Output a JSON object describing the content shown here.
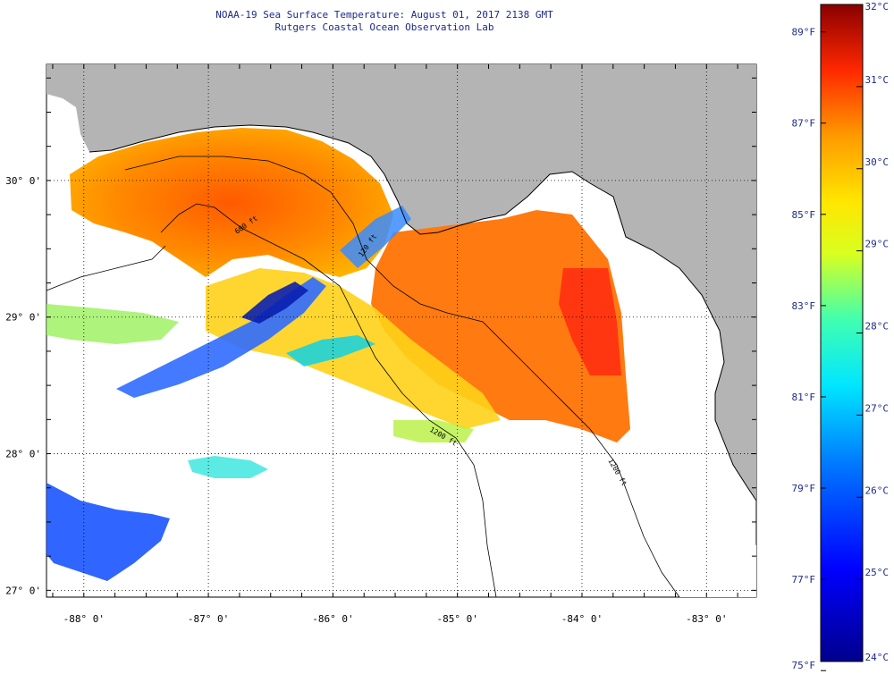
{
  "title_line1": "NOAA-19 Sea Surface Temperature:  August 01, 2017 2138 GMT",
  "title_line2": "Rutgers Coastal Ocean Observation Lab",
  "map": {
    "lat_range": [
      26.95,
      30.85
    ],
    "lon_range": [
      -88.3,
      -82.6
    ],
    "lat_labels": [
      "27° 0'",
      "28° 0'",
      "29° 0'",
      "30° 0'"
    ],
    "lon_labels": [
      "-88° 0'",
      "-87° 0'",
      "-86° 0'",
      "-85° 0'",
      "-84° 0'",
      "-83° 0'"
    ],
    "isobath_labels": [
      "120 ft",
      "600 ft",
      "1200 ft",
      "1200 ft"
    ],
    "land_color": "#b4b4b4",
    "cloud_color": "#ffffff"
  },
  "colorbar": {
    "celsius_min": 24,
    "celsius_max": 32,
    "celsius_labels": [
      "32°C",
      "31°C",
      "30°C",
      "29°C",
      "28°C",
      "27°C",
      "26°C",
      "25°C",
      "24°C"
    ],
    "fahrenheit_labels": [
      "89°F",
      "87°F",
      "85°F",
      "83°F",
      "81°F",
      "79°F",
      "77°F",
      "75°F"
    ]
  }
}
